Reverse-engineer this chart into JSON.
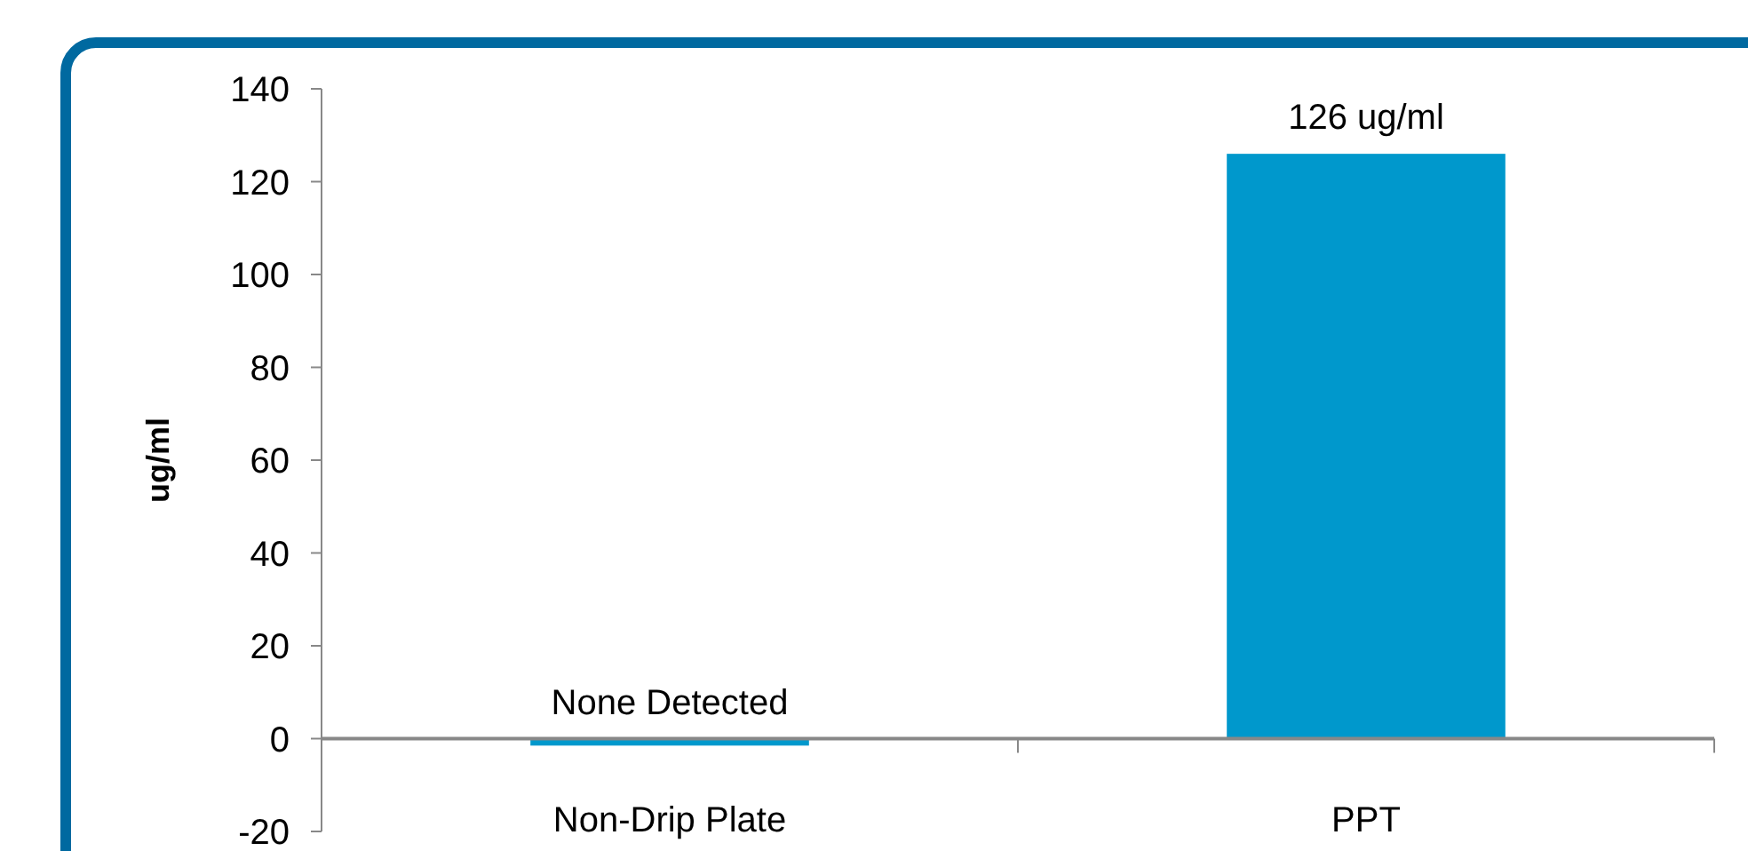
{
  "chart_data": {
    "type": "bar",
    "ylabel": "ug/ml",
    "categories": [
      "Non-Drip Plate",
      "PPT"
    ],
    "values": [
      -1.5,
      126
    ],
    "color": "#0098cc",
    "value_labels": [
      "None Detected",
      "126 ug/ml"
    ],
    "ylim": [
      -20,
      140
    ],
    "yticks": [
      -20,
      0,
      20,
      40,
      60,
      80,
      100,
      120,
      140
    ],
    "grid": false
  }
}
